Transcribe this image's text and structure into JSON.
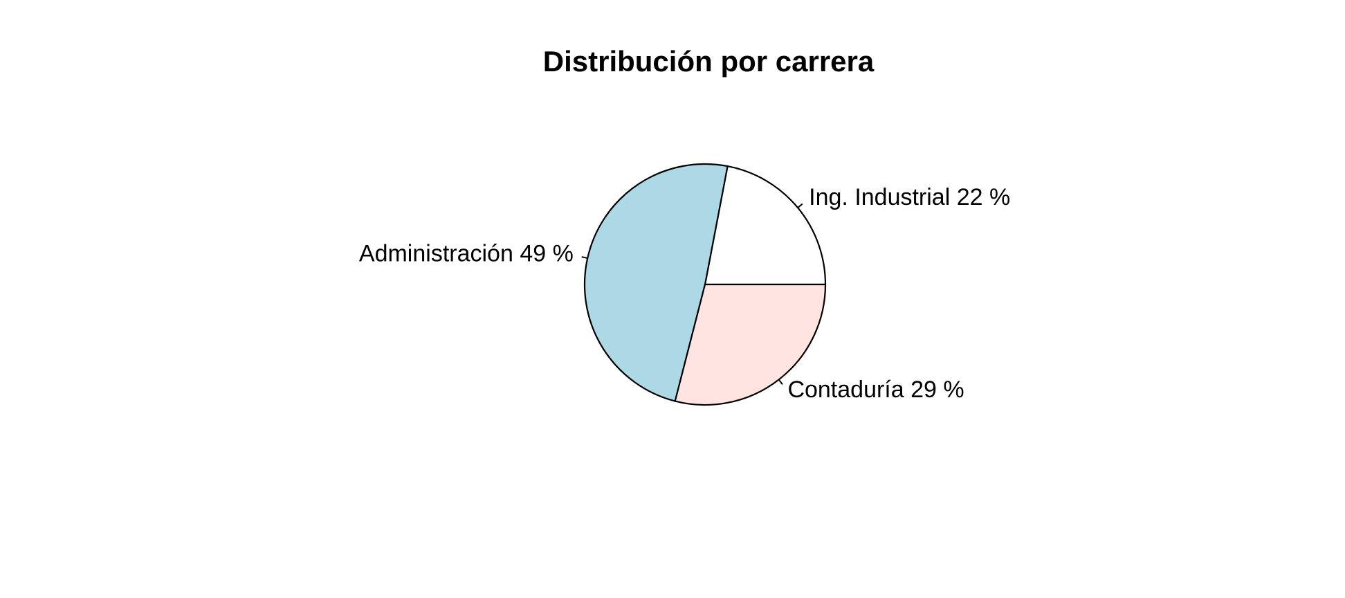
{
  "chart_data": {
    "type": "pie",
    "title": "Distribución por carrera",
    "start_angle_deg": 0,
    "direction": "counterclockwise",
    "slices": [
      {
        "name": "Ing. Industrial",
        "value": 22,
        "label": "Ing. Industrial 22 %",
        "color": "#ffffff"
      },
      {
        "name": "Administración",
        "value": 49,
        "label": "Administración  49 %",
        "color": "#add8e6"
      },
      {
        "name": "Contaduría",
        "value": 29,
        "label": "Contaduría  29 %",
        "color": "#ffe4e1"
      }
    ]
  }
}
